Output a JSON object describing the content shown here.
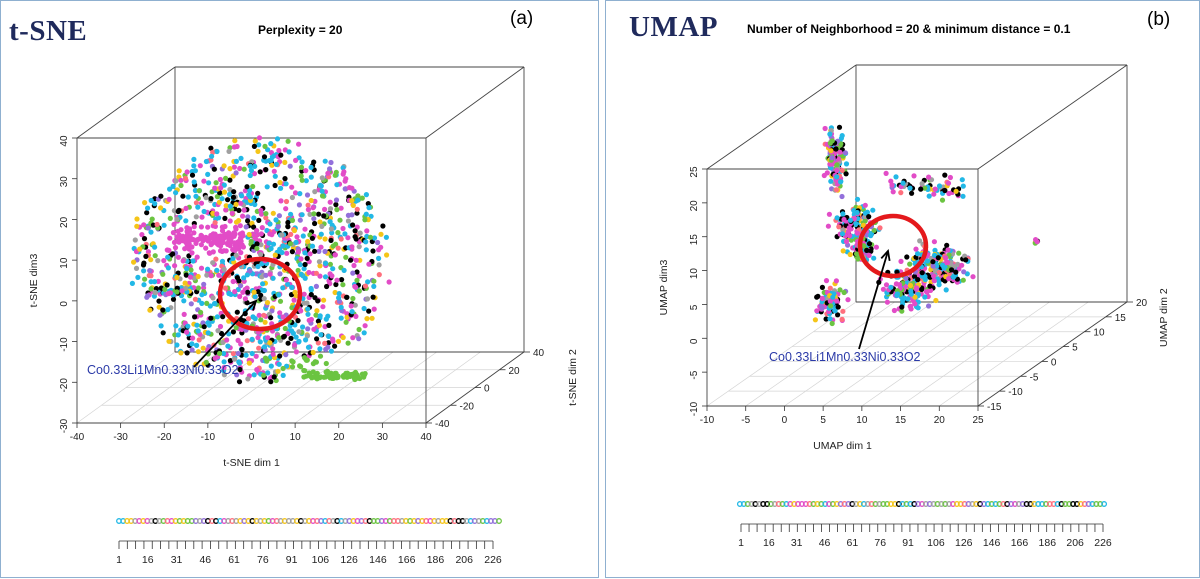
{
  "chart_data": [
    {
      "type": "scatter",
      "method": "t-SNE",
      "title": "Perplexity = 20",
      "panel_tag": "(a)",
      "xlabel": "t-SNE dim 1",
      "ylabel": "t-SNE dim 2",
      "zlabel": "t-SNE dim3",
      "xlim": [
        -40,
        40
      ],
      "ylim": [
        -40,
        40
      ],
      "zlim": [
        -30,
        40
      ],
      "x_ticks": [
        "-40",
        "-30",
        "-20",
        "-10",
        "0",
        "10",
        "20",
        "30",
        "40"
      ],
      "y_ticks": [
        "-40",
        "-20",
        "0",
        "20",
        "40"
      ],
      "z_ticks": [
        "-30",
        "-20",
        "-10",
        "0",
        "10",
        "20",
        "30",
        "40"
      ],
      "annotation": "Co0.33Li1Mn0.33Ni0.33O2",
      "colorbar_ticks": [
        "1",
        "16",
        "31",
        "46",
        "61",
        "76",
        "91",
        "106",
        "126",
        "146",
        "166",
        "186",
        "206",
        "226"
      ],
      "palette": [
        "#000000",
        "#e24cc7",
        "#22b8e6",
        "#6bc441",
        "#f5c518",
        "#a0a0a0",
        "#ff6f7d",
        "#9370db"
      ]
    },
    {
      "type": "scatter",
      "method": "UMAP",
      "title": "Number of Neighborhood = 20 & minimum distance = 0.1",
      "panel_tag": "(b)",
      "xlabel": "UMAP dim 1",
      "ylabel": "UMAP dim 2",
      "zlabel": "UMAP dim3",
      "xlim": [
        -10,
        25
      ],
      "ylim": [
        -15,
        20
      ],
      "zlim": [
        -10,
        25
      ],
      "x_ticks": [
        "-10",
        "-5",
        "0",
        "5",
        "10",
        "15",
        "20",
        "25"
      ],
      "y_ticks": [
        "-15",
        "-10",
        "-5",
        "0",
        "5",
        "10",
        "15",
        "20"
      ],
      "z_ticks": [
        "-10",
        "-5",
        "0",
        "5",
        "10",
        "15",
        "20",
        "25"
      ],
      "annotation": "Co0.33Li1Mn0.33Ni0.33O2",
      "colorbar_ticks": [
        "1",
        "16",
        "31",
        "46",
        "61",
        "76",
        "91",
        "106",
        "126",
        "146",
        "166",
        "186",
        "206",
        "226"
      ],
      "palette": [
        "#000000",
        "#e24cc7",
        "#22b8e6",
        "#6bc441",
        "#f5c518",
        "#a0a0a0",
        "#ff6f7d",
        "#9370db"
      ]
    }
  ]
}
